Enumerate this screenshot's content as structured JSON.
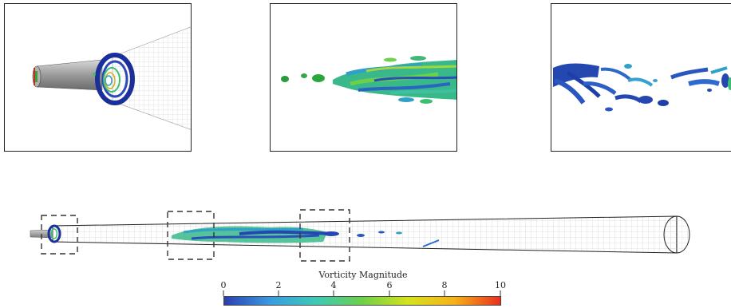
{
  "colorbar": {
    "title": "Vorticity Magnitude",
    "ticks": [
      "0",
      "2",
      "4",
      "6",
      "8",
      "10"
    ],
    "colors": [
      "#2b3fb0",
      "#3a9be0",
      "#3ec9b6",
      "#6dd04a",
      "#d6e21e",
      "#f6b21a",
      "#e8301e"
    ]
  },
  "panels": [
    "inlet-closeup",
    "transition-closeup",
    "breakdown-closeup"
  ],
  "colors": {
    "mesh": "#cccccc",
    "pipe_outline": "#222222",
    "vortex_blue": "#2850b8",
    "vortex_green": "#3cc080",
    "vortex_teal": "#2fa0c8"
  }
}
